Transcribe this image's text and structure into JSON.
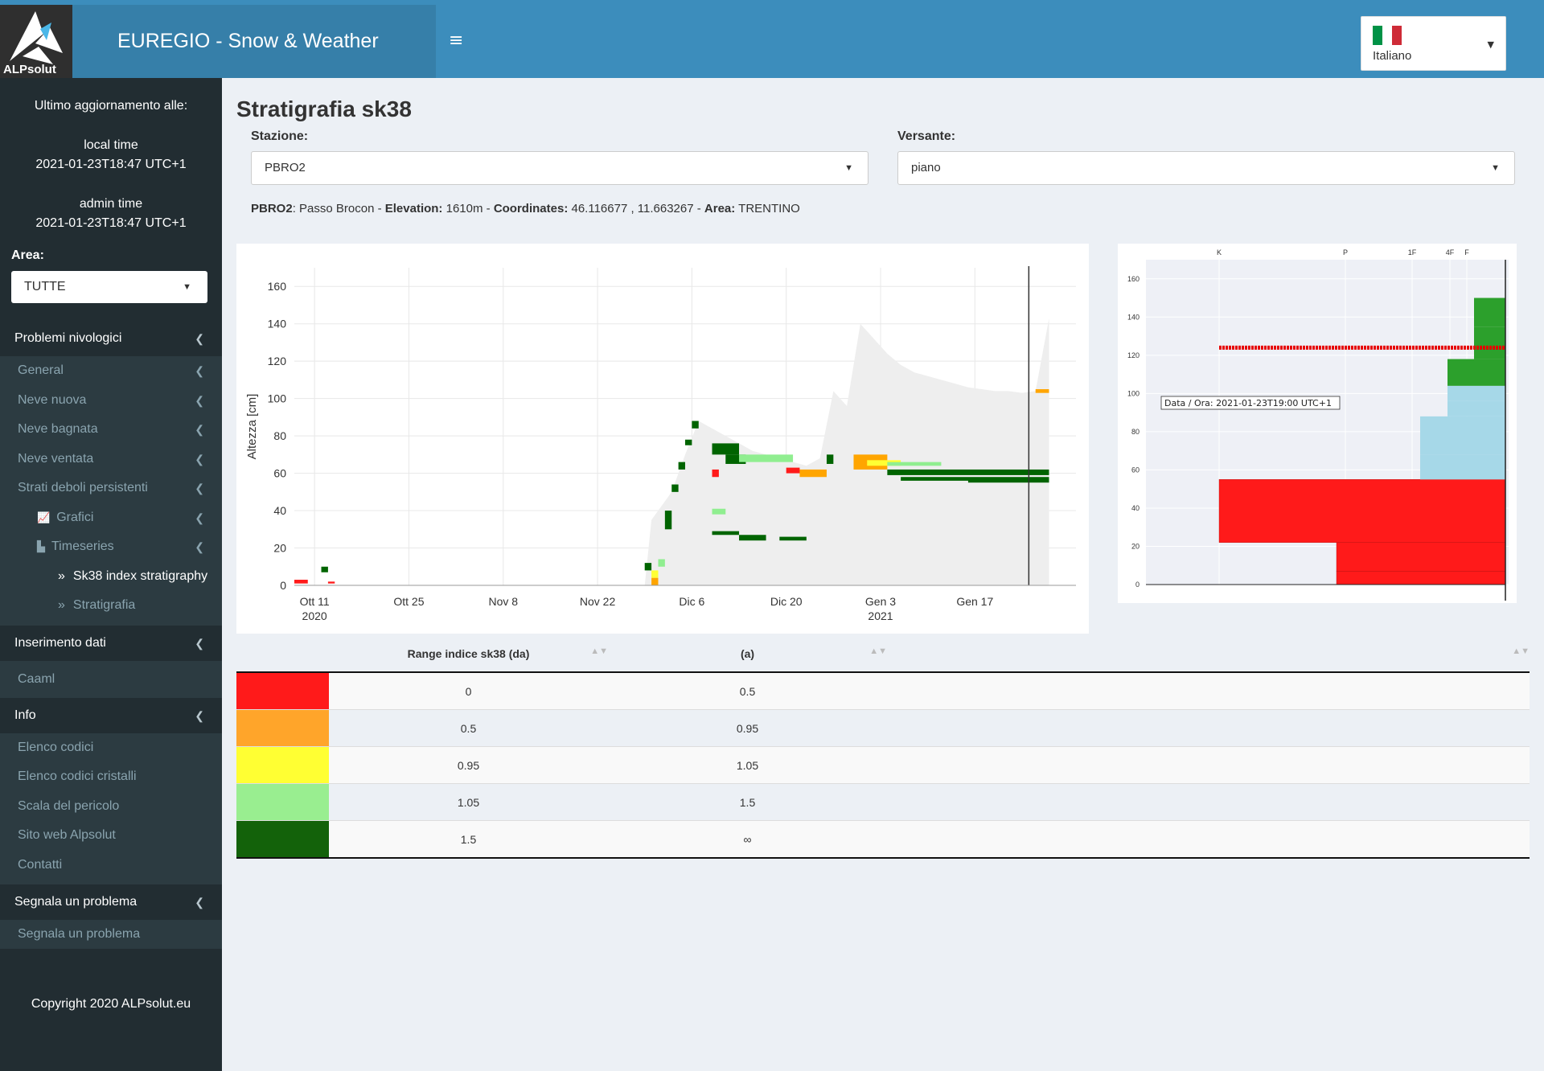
{
  "header": {
    "logo_text": "ALPsolut",
    "brand": "EUREGIO - Snow & Weather",
    "language": "Italiano",
    "flag_colors": [
      "#009246",
      "#ffffff",
      "#ce2b37"
    ]
  },
  "sidebar": {
    "update_title": "Ultimo aggiornamento alle:",
    "local_time_label": "local time",
    "local_time": "2021-01-23T18:47 UTC+1",
    "admin_time_label": "admin time",
    "admin_time": "2021-01-23T18:47 UTC+1",
    "area_label": "Area:",
    "area_value": "TUTTE",
    "problems_header": "Problemi nivologici",
    "problems_items": [
      "General",
      "Neve nuova",
      "Neve bagnata",
      "Neve ventata",
      "Strati deboli persistenti"
    ],
    "grafici": "Grafici",
    "timeseries": "Timeseries",
    "sk38_link": "Sk38 index stratigraphy",
    "stratigrafia_link": "Stratigrafia",
    "data_entry_header": "Inserimento dati",
    "caaml": "Caaml",
    "info_header": "Info",
    "info_items": [
      "Elenco codici",
      "Elenco codici cristalli",
      "Scala del pericolo",
      "Sito web Alpsolut",
      "Contatti"
    ],
    "report_header": "Segnala un problema",
    "report_item": "Segnala un problema",
    "copyright": "Copyright 2020 ALPsolut.eu"
  },
  "main": {
    "title": "Stratigrafia sk38",
    "station_label": "Stazione:",
    "station_value": "PBRO2",
    "aspect_label": "Versante:",
    "aspect_value": "piano",
    "info": {
      "code": "PBRO2",
      "name_text": ": Passo Brocon - ",
      "elevation_label": "Elevation:",
      "elevation_value": " 1610m - ",
      "coordinates_label": "Coordinates:",
      "coordinates_value": " 46.116677 , 11.663267 - ",
      "area_label": "Area:",
      "area_value": " TRENTINO"
    }
  },
  "chart_data": [
    {
      "type": "area",
      "ylabel": "Altezza [cm]",
      "xlabel": "",
      "x_ticks": [
        "Ott 11",
        "Ott 25",
        "Nov 8",
        "Nov 22",
        "Dic 6",
        "Dic 20",
        "Gen 3",
        "Gen 17"
      ],
      "x_year_labels": [
        {
          "under": "Ott 11",
          "text": "2020"
        },
        {
          "under": "Gen 3",
          "text": "2021"
        }
      ],
      "y_ticks": [
        0,
        20,
        40,
        60,
        80,
        100,
        120,
        140,
        160
      ],
      "ylim": [
        0,
        170
      ],
      "grid": true,
      "series": [
        {
          "values_note": "",
          "date_index": [
            0,
            52,
            53,
            56,
            58,
            60,
            62,
            64,
            66,
            68,
            70,
            72,
            74,
            76,
            78,
            80,
            82,
            84,
            86,
            88,
            90,
            92,
            94,
            96,
            98,
            100,
            102,
            104,
            106,
            108,
            110,
            112
          ],
          "values": [
            0,
            0,
            35,
            50,
            70,
            88,
            84,
            80,
            76,
            72,
            70,
            68,
            66,
            64,
            68,
            104,
            96,
            140,
            132,
            124,
            118,
            114,
            112,
            110,
            108,
            106,
            105,
            104,
            104,
            103,
            104,
            143
          ]
        }
      ],
      "colors": {
        "snowpack": "#eeeeee",
        "sk38_lt_0_5": "#ff1a1a",
        "sk38_0_5_0_95": "#ffa500",
        "sk38_0_95_1_05": "#ffff33",
        "sk38_1_05_1_5": "#90ee90",
        "sk38_gt_1_5": "#006400"
      }
    },
    {
      "type": "bar",
      "ylabel": "",
      "top_axis_ticks": [
        "K",
        "P",
        "1F",
        "4F",
        "F"
      ],
      "y_ticks": [
        0,
        20,
        40,
        60,
        80,
        100,
        120,
        140,
        160
      ],
      "ylim": [
        0,
        170
      ],
      "annotation": "Data / Ora: 2021-01-23T19:00 UTC+1",
      "hardness_profile": [
        {
          "from": 0,
          "to": 7,
          "hardness": "P",
          "color": "#ff1a1a"
        },
        {
          "from": 7,
          "to": 22,
          "hardness": "P",
          "color": "#ff1a1a"
        },
        {
          "from": 22,
          "to": 55,
          "hardness": "K",
          "color": "#ff1a1a"
        },
        {
          "from": 55,
          "to": 68,
          "hardness": "1F",
          "color": "#a6d8e8"
        },
        {
          "from": 68,
          "to": 88,
          "hardness": "1F",
          "color": "#a6d8e8"
        },
        {
          "from": 88,
          "to": 96,
          "hardness": "4F",
          "color": "#a6d8e8"
        },
        {
          "from": 96,
          "to": 104,
          "hardness": "4F",
          "color": "#a6d8e8"
        },
        {
          "from": 104,
          "to": 118,
          "hardness": "4F",
          "color": "#2ca02c"
        },
        {
          "from": 118,
          "to": 135,
          "hardness": "F",
          "color": "#2ca02c"
        },
        {
          "from": 135,
          "to": 150,
          "hardness": "F",
          "color": "#2ca02c"
        }
      ],
      "weak_layer_height": 124
    }
  ],
  "table": {
    "headers": [
      "",
      "Range indice sk38 (da)",
      "(a)",
      ""
    ],
    "rows": [
      {
        "color": "#ff1a1a",
        "from": "0",
        "to": "0.5"
      },
      {
        "color": "#ffa52a",
        "from": "0.5",
        "to": "0.95"
      },
      {
        "color": "#ffff33",
        "from": "0.95",
        "to": "1.05"
      },
      {
        "color": "#99ee90",
        "from": "1.05",
        "to": "1.5"
      },
      {
        "color": "#13620a",
        "from": "1.5",
        "to": "∞"
      }
    ]
  }
}
